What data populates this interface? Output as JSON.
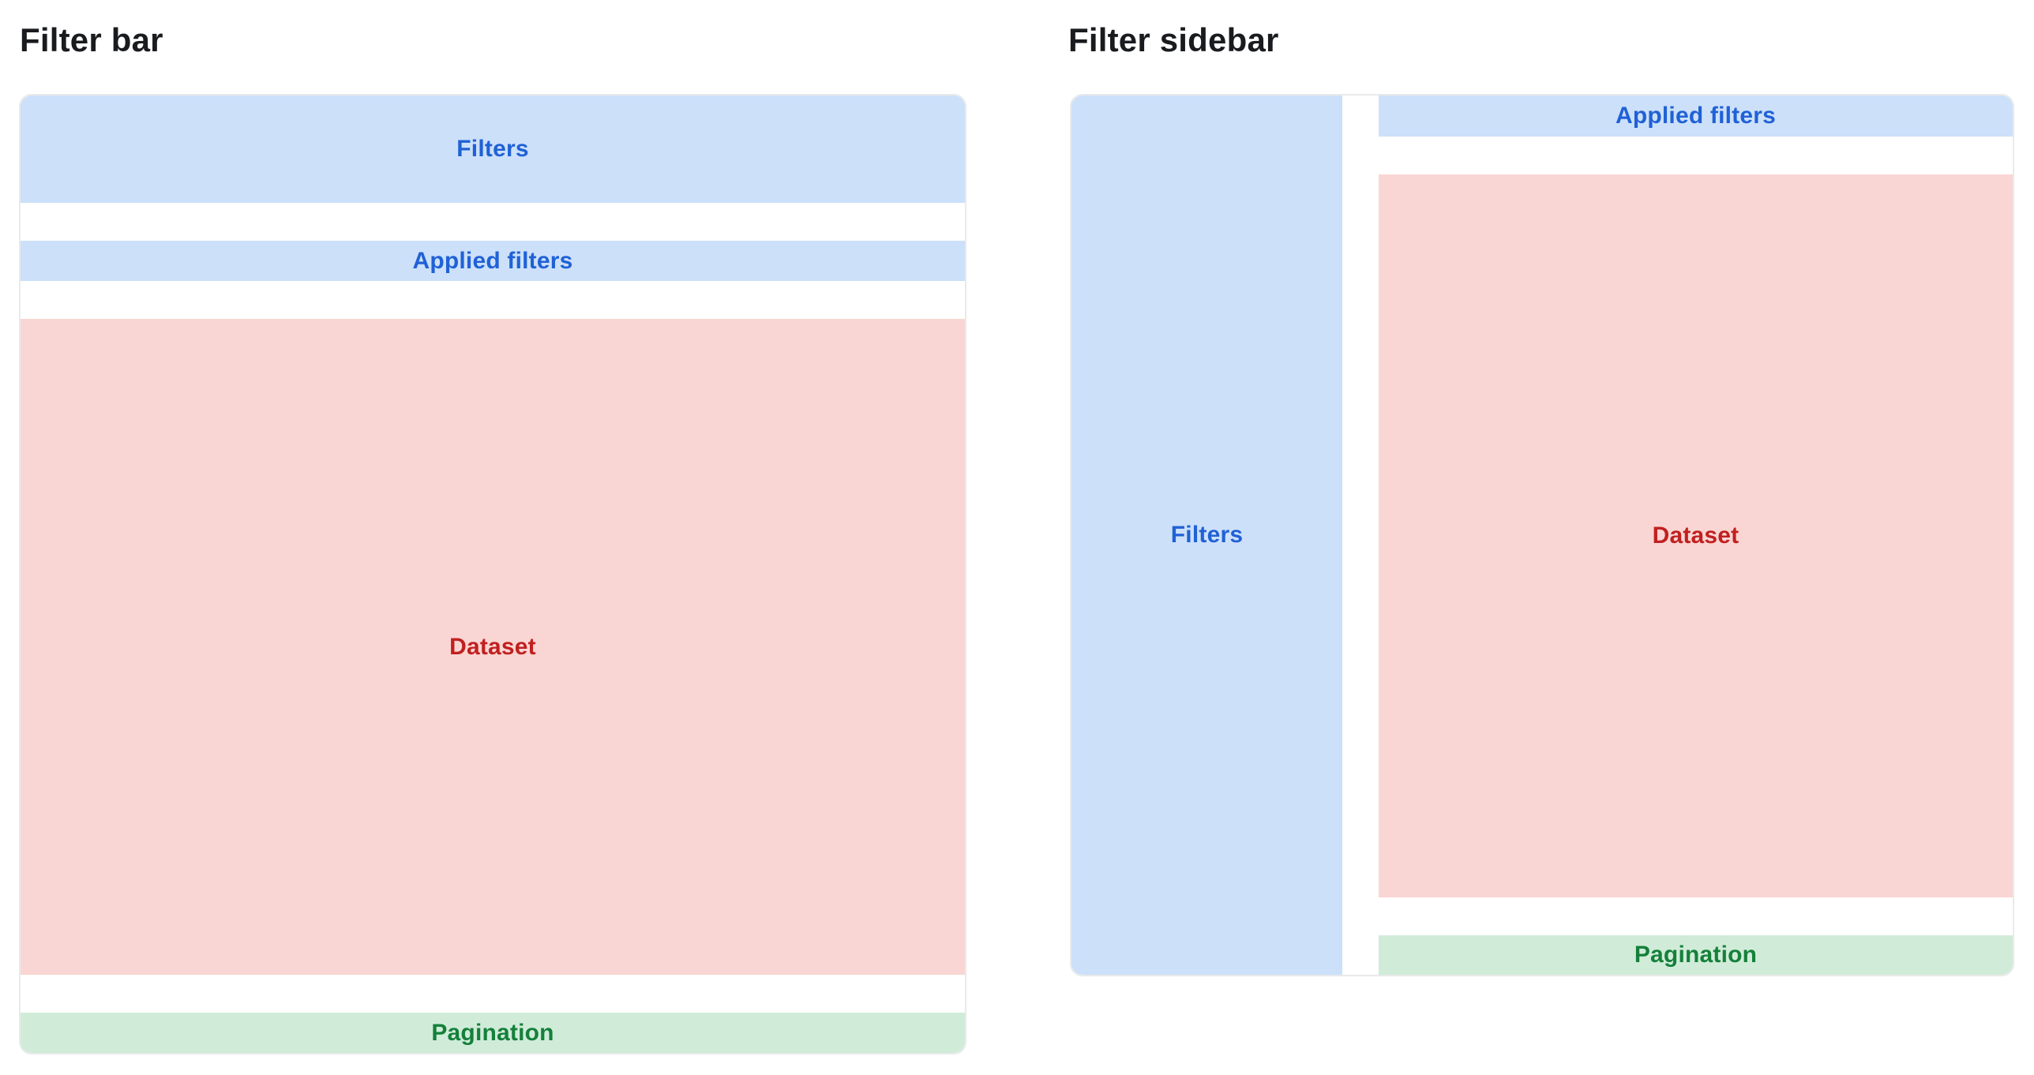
{
  "colors": {
    "page-bg": "#ffffff",
    "title-text": "#191b1e",
    "frame-border": "#e9eaeb",
    "blue-bg": "#cce0fa",
    "blue-text": "#2061d5",
    "pink-bg": "#f9d6d3",
    "red-text": "#c12020",
    "green-bg": "#d0ecd9",
    "green-text": "#15803a"
  },
  "left_panel": {
    "title": "Filter bar",
    "filters_label": "Filters",
    "applied_filters_label": "Applied filters",
    "dataset_label": "Dataset",
    "pagination_label": "Pagination"
  },
  "right_panel": {
    "title": "Filter sidebar",
    "filters_label": "Filters",
    "applied_filters_label": "Applied filters",
    "dataset_label": "Dataset",
    "pagination_label": "Pagination"
  }
}
